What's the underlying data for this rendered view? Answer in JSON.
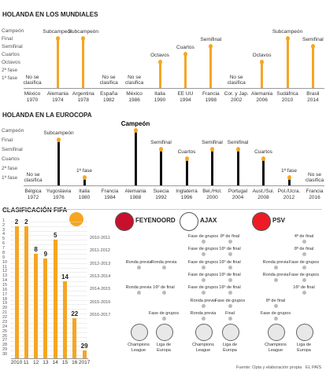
{
  "world_cup": {
    "title": "HOLANDA EN LOS MUNDIALES",
    "stages": [
      "Campeón",
      "Final",
      "Semifinal",
      "Cuartos",
      "Octavos",
      "2ª fase",
      "1ª fase"
    ],
    "editions": [
      {
        "host": "México",
        "year": "1970",
        "reached": null,
        "label": "No se clasifica"
      },
      {
        "host": "Alemania",
        "year": "1974",
        "reached": "Final",
        "label": "Subcampeón"
      },
      {
        "host": "Argentina",
        "year": "1978",
        "reached": "Final",
        "label": "Subcampeón"
      },
      {
        "host": "España",
        "year": "1982",
        "reached": null,
        "label": "No se clasifica"
      },
      {
        "host": "México",
        "year": "1986",
        "reached": null,
        "label": "No se clasifica"
      },
      {
        "host": "Italia",
        "year": "1990",
        "reached": "Octavos",
        "label": "Octavos"
      },
      {
        "host": "EE UU",
        "year": "1994",
        "reached": "Cuartos",
        "label": "Cuartos"
      },
      {
        "host": "Francia",
        "year": "1998",
        "reached": "Semifinal",
        "label": "Semifinal"
      },
      {
        "host": "Cor. y Jap.",
        "year": "2002",
        "reached": null,
        "label": "No se clasifica"
      },
      {
        "host": "Alemania",
        "year": "2006",
        "reached": "Octavos",
        "label": "Octavos"
      },
      {
        "host": "Sudáfrica",
        "year": "2010",
        "reached": "Final",
        "label": "Subcampeón"
      },
      {
        "host": "Brasil",
        "year": "2014",
        "reached": "Semifinal",
        "label": "Semifinal"
      }
    ]
  },
  "euro": {
    "title": "HOLANDA EN LA EUROCOPA",
    "stages": [
      "Campeón",
      "Final",
      "Semifinal",
      "Cuartos",
      "2ª fase",
      "1ª fase"
    ],
    "editions": [
      {
        "host": "Bélgica",
        "year": "1972",
        "reached": null,
        "label": "No se clasifica"
      },
      {
        "host": "Yugoslavia",
        "year": "1976",
        "reached": "Final",
        "label": "Subcampeón"
      },
      {
        "host": "Italia",
        "year": "1980",
        "reached": "1ª fase",
        "label": "1ª fase"
      },
      {
        "host": "Francia",
        "year": "1984",
        "reached": null,
        "label": null
      },
      {
        "host": "Alemania",
        "year": "1988",
        "reached": "Campeón",
        "label": "Campeón"
      },
      {
        "host": "Suecia",
        "year": "1992",
        "reached": "Semifinal",
        "label": "Semifinal"
      },
      {
        "host": "Inglaterra",
        "year": "1996",
        "reached": "Cuartos",
        "label": "Cuartos"
      },
      {
        "host": "Bel./Hol.",
        "year": "2000",
        "reached": "Semifinal",
        "label": "Semifinal"
      },
      {
        "host": "Portugal",
        "year": "2004",
        "reached": "Semifinal",
        "label": "Semifinal"
      },
      {
        "host": "Aust./Sui.",
        "year": "2008",
        "reached": "Cuartos",
        "label": "Cuartos"
      },
      {
        "host": "Pol./Ucra.",
        "year": "2012",
        "reached": "1ª fase",
        "label": "1ª fase"
      },
      {
        "host": "Francia",
        "year": "2016",
        "reached": null,
        "label": "No se clasifica"
      }
    ]
  },
  "fifa_ranking": {
    "type": "bar",
    "title": "CLASIFICACIÓN FIFA",
    "categories": [
      "2010",
      "11",
      "12",
      "13",
      "14",
      "15",
      "16",
      "2017"
    ],
    "values": [
      2,
      2,
      8,
      9,
      5,
      14,
      22,
      29
    ],
    "color": "#f5a623",
    "ylim": [
      0,
      30
    ],
    "y_inverted": true,
    "yticks": [
      1,
      2,
      3,
      4,
      5,
      6,
      7,
      8,
      9,
      10,
      11,
      12,
      13,
      14,
      15,
      16,
      17,
      18,
      19,
      20,
      21,
      22,
      23,
      24,
      25,
      26,
      27,
      28,
      29,
      30
    ]
  },
  "clubs": {
    "seasons": [
      "2010-2011",
      "2011-2012",
      "2012-2013",
      "2013-2014",
      "2014-2015",
      "2015-2016",
      "2016-2017"
    ],
    "competitions": [
      "Champions League",
      "Liga de Europa"
    ],
    "teams": [
      {
        "name": "FEYENOORD",
        "results": [
          [
            null,
            null
          ],
          [
            null,
            null
          ],
          [
            "Ronda previa",
            "Ronda previa"
          ],
          [
            null,
            null
          ],
          [
            "Ronda previa",
            "16º de final"
          ],
          [
            null,
            null
          ],
          [
            null,
            "Fase de grupos"
          ]
        ]
      },
      {
        "name": "AJAX",
        "results": [
          [
            "Fase de grupos",
            "8º de final"
          ],
          [
            "Fase de grupos",
            "16º de final"
          ],
          [
            "Fase de grupos",
            "16º de final"
          ],
          [
            "Fase de grupos",
            "16º de final"
          ],
          [
            "Fase de grupos",
            "16º de final"
          ],
          [
            "Ronda previa",
            "Fase de grupos"
          ],
          [
            "Ronda previa",
            "Final"
          ]
        ]
      },
      {
        "name": "PSV",
        "results": [
          [
            null,
            "4º de final"
          ],
          [
            null,
            "8º de final"
          ],
          [
            "Ronda previa",
            "Fase de grupos"
          ],
          [
            "Ronda previa",
            "Fase de grupos"
          ],
          [
            null,
            "16º de final"
          ],
          [
            "8º de final",
            null
          ],
          [
            "Fase de grupos",
            null
          ]
        ]
      }
    ]
  },
  "source": "Fuente: Opta y elaboración propia",
  "publisher": "EL PAÍS"
}
